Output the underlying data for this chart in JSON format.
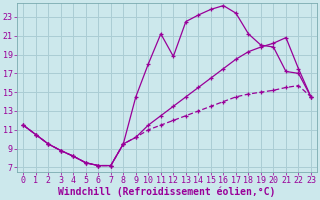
{
  "background_color": "#cce8ec",
  "grid_color": "#aacdd4",
  "line_color": "#990099",
  "marker": "+",
  "xlabel": "Windchill (Refroidissement éolien,°C)",
  "xlim": [
    -0.5,
    23.5
  ],
  "ylim": [
    6.5,
    24.5
  ],
  "xticks": [
    0,
    1,
    2,
    3,
    4,
    5,
    6,
    7,
    8,
    9,
    10,
    11,
    12,
    13,
    14,
    15,
    16,
    17,
    18,
    19,
    20,
    21,
    22,
    23
  ],
  "yticks": [
    7,
    9,
    11,
    13,
    15,
    17,
    19,
    21,
    23
  ],
  "line1_x": [
    0,
    1,
    2,
    3,
    4,
    5,
    6,
    7,
    8,
    9,
    10,
    11,
    12,
    13,
    14,
    15,
    16,
    17,
    18,
    19,
    20,
    21,
    22,
    23
  ],
  "line1_y": [
    11.5,
    10.5,
    9.5,
    8.8,
    8.2,
    7.5,
    7.2,
    7.2,
    9.5,
    14.5,
    18.0,
    21.2,
    18.8,
    22.5,
    23.2,
    23.8,
    24.2,
    23.4,
    21.2,
    20.0,
    19.8,
    17.2,
    17.0,
    14.5
  ],
  "line2_x": [
    0,
    1,
    2,
    3,
    4,
    5,
    6,
    7,
    8,
    9,
    10,
    11,
    12,
    13,
    14,
    15,
    16,
    17,
    18,
    19,
    20,
    21,
    22,
    23
  ],
  "line2_y": [
    11.5,
    10.5,
    9.5,
    8.8,
    8.2,
    7.5,
    7.2,
    7.2,
    9.5,
    10.2,
    11.5,
    12.5,
    13.5,
    14.5,
    15.5,
    16.5,
    17.5,
    18.5,
    19.3,
    19.8,
    20.2,
    20.8,
    17.5,
    14.5
  ],
  "line3_x": [
    0,
    1,
    2,
    3,
    4,
    5,
    6,
    7,
    8,
    9,
    10,
    11,
    12,
    13,
    14,
    15,
    16,
    17,
    18,
    19,
    20,
    21,
    22,
    23
  ],
  "line3_y": [
    11.5,
    10.5,
    9.5,
    8.8,
    8.2,
    7.5,
    7.2,
    7.2,
    9.5,
    10.2,
    11.0,
    11.5,
    12.0,
    12.5,
    13.0,
    13.5,
    14.0,
    14.5,
    14.8,
    15.0,
    15.2,
    15.5,
    15.7,
    14.5
  ],
  "fontsize_xlabel": 7,
  "fontsize_ticks": 6
}
